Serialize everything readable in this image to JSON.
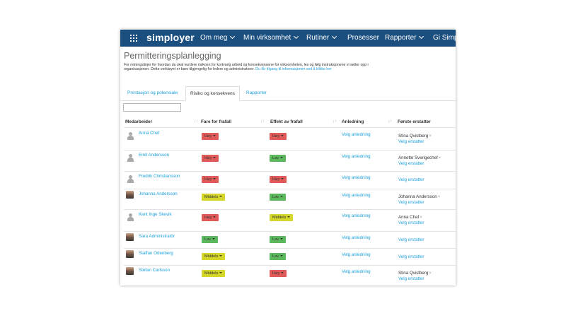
{
  "nav": {
    "logo": "simployer",
    "items": [
      "Om meg",
      "Min virksomhet",
      "Rutiner",
      "Prosesser",
      "Rapporter",
      "Gi Simplo"
    ]
  },
  "page": {
    "title": "Permitteringsplanlegging",
    "desc_text": "For retningslinjer for hvordan du skal vurdere risikoen for kortvarig arbeid og konsekvensene for virksomheten, les og følg instruksjonene vi setter opp i organisasjonen. Dette verktøyet er bare tilgjengelig for ledere og administratorer. ",
    "desc_link": "Du får tilgang til informasjonen ved å klikke her"
  },
  "tabs": [
    "Prestasjon og potensiale",
    "Risiko og konsekvens",
    "Rapporter"
  ],
  "active_tab": 1,
  "table": {
    "headers": [
      "Medarbeider",
      "Fare for frafall",
      "Effekt av frafall",
      "Anledning",
      "Første erstatter"
    ],
    "choose_occasion": "Velg anledning",
    "choose_replacement": "Velg erstatter",
    "remove_symbol": "×",
    "rows": [
      {
        "name": "Anna Chef",
        "avatar": "generic",
        "risk": "Høy",
        "effect": "Høy",
        "replacement": "Stina Qvistberg"
      },
      {
        "name": "Emil Andersson",
        "avatar": "generic",
        "risk": "Høy",
        "effect": "Lav",
        "replacement": "Annette Sverigechef"
      },
      {
        "name": "Fredrik Christiansson",
        "avatar": "generic",
        "risk": "Høy",
        "effect": "Høy",
        "replacement": ""
      },
      {
        "name": "Johanna Andersson",
        "avatar": "photo",
        "risk": "Middels",
        "effect": "Lav",
        "replacement": "Johanna Andersson"
      },
      {
        "name": "Kent Inge Skevik",
        "avatar": "generic",
        "risk": "Høy",
        "effect": "Middels",
        "replacement": "Anna Chef"
      },
      {
        "name": "Sara Administratör",
        "avatar": "photo",
        "risk": "Lav",
        "effect": "Lav",
        "replacement": ""
      },
      {
        "name": "Staffan Odenberg",
        "avatar": "photo",
        "risk": "Middels",
        "effect": "Lav",
        "replacement": ""
      },
      {
        "name": "Stefan Carlsson",
        "avatar": "photo",
        "risk": "Middels",
        "effect": "Høy",
        "replacement": "Stina Qvistberg"
      }
    ]
  },
  "colors": {
    "navbar": "#1a4f80",
    "high": "#e05a5a",
    "medium": "#d4d62a",
    "low": "#5cb85c",
    "link": "#1aa0dc"
  }
}
